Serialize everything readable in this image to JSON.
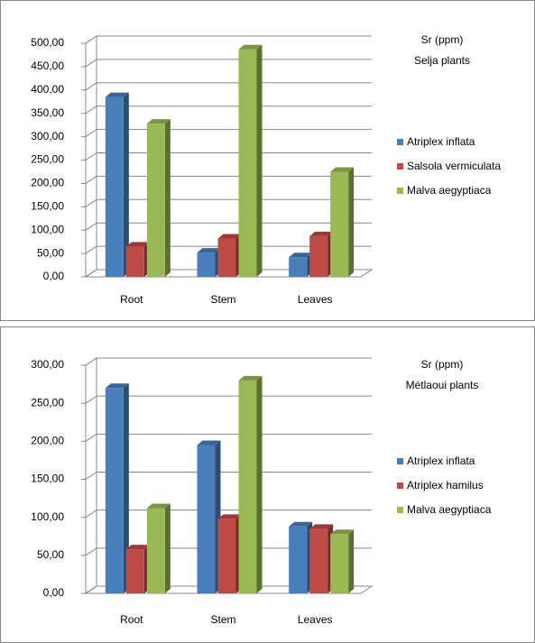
{
  "chart_data": [
    {
      "type": "bar",
      "title": "Sr (ppm)",
      "subtitle": "Selja plants",
      "categories": [
        "Root",
        "Stem",
        "Leaves"
      ],
      "series": [
        {
          "name": "Atriplex inflata",
          "color": "#4a7ebb",
          "values": [
            385,
            52,
            42
          ]
        },
        {
          "name": "Salsola vermiculata",
          "color": "#be4b48",
          "values": [
            65,
            82,
            87
          ]
        },
        {
          "name": "Malva aegyptiaca",
          "color": "#98b954",
          "values": [
            328,
            487,
            225
          ]
        }
      ],
      "ylim": [
        0,
        500
      ],
      "yticks": [
        {
          "value": 0,
          "label": "0,00"
        },
        {
          "value": 50,
          "label": "50,00"
        },
        {
          "value": 100,
          "label": "100,00"
        },
        {
          "value": 150,
          "label": "150,00"
        },
        {
          "value": 200,
          "label": "200,00"
        },
        {
          "value": 250,
          "label": "250,00"
        },
        {
          "value": 300,
          "label": "300,00"
        },
        {
          "value": 350,
          "label": "350,00"
        },
        {
          "value": 400,
          "label": "400,00"
        },
        {
          "value": 450,
          "label": "450,00"
        },
        {
          "value": 500,
          "label": "500,00"
        }
      ],
      "grid": true,
      "legend": "right"
    },
    {
      "type": "bar",
      "title": "Sr (ppm)",
      "subtitle": "Métlaoui plants",
      "categories": [
        "Root",
        "Stem",
        "Leaves"
      ],
      "series": [
        {
          "name": "Atriplex inflata",
          "color": "#4a7ebb",
          "values": [
            270,
            195,
            88
          ]
        },
        {
          "name": "Atriplex hamilus",
          "color": "#be4b48",
          "values": [
            58,
            98,
            85
          ]
        },
        {
          "name": "Malva aegyptiaca",
          "color": "#98b954",
          "values": [
            112,
            280,
            78
          ]
        }
      ],
      "ylim": [
        0,
        300
      ],
      "yticks": [
        {
          "value": 0,
          "label": "0,00"
        },
        {
          "value": 50,
          "label": "50,00"
        },
        {
          "value": 100,
          "label": "100,00"
        },
        {
          "value": 150,
          "label": "150,00"
        },
        {
          "value": 200,
          "label": "200,00"
        },
        {
          "value": 250,
          "label": "250,00"
        },
        {
          "value": 300,
          "label": "300,00"
        }
      ],
      "grid": true,
      "legend": "right"
    }
  ]
}
